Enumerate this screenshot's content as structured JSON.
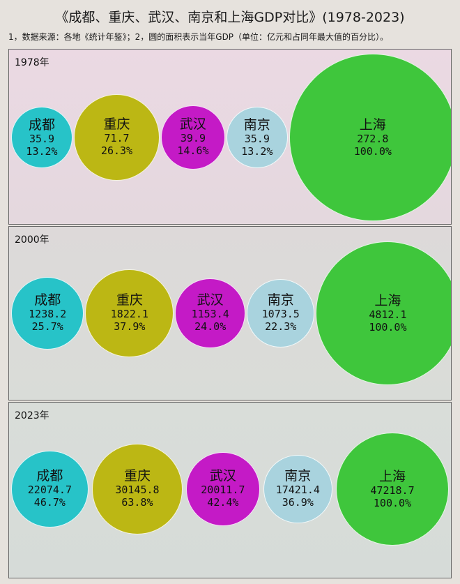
{
  "title": "《成都、重庆、武汉、南京和上海GDP对比》(1978-2023)",
  "note": "1，数据来源：各地《统计年鉴》；2，圆的面积表示当年GDP（单位：亿元和占同年最大值的百分比）。",
  "colors": {
    "成都": "#27c3c8",
    "重庆": "#bcb714",
    "武汉": "#c41ac6",
    "南京": "#a9d3de",
    "上海": "#3fc63c"
  },
  "chart_data": [
    {
      "type": "bubble",
      "panel_label": "1978年",
      "cities": [
        {
          "name": "成都",
          "value": "35.9",
          "percent": "13.2%"
        },
        {
          "name": "重庆",
          "value": "71.7",
          "percent": "26.3%"
        },
        {
          "name": "武汉",
          "value": "39.9",
          "percent": "14.6%"
        },
        {
          "name": "南京",
          "value": "35.9",
          "percent": "13.2%"
        },
        {
          "name": "上海",
          "value": "272.8",
          "percent": "100.0%"
        }
      ]
    },
    {
      "type": "bubble",
      "panel_label": "2000年",
      "cities": [
        {
          "name": "成都",
          "value": "1238.2",
          "percent": "25.7%"
        },
        {
          "name": "重庆",
          "value": "1822.1",
          "percent": "37.9%"
        },
        {
          "name": "武汉",
          "value": "1153.4",
          "percent": "24.0%"
        },
        {
          "name": "南京",
          "value": "1073.5",
          "percent": "22.3%"
        },
        {
          "name": "上海",
          "value": "4812.1",
          "percent": "100.0%"
        }
      ]
    },
    {
      "type": "bubble",
      "panel_label": "2023年",
      "cities": [
        {
          "name": "成都",
          "value": "22074.7",
          "percent": "46.7%"
        },
        {
          "name": "重庆",
          "value": "30145.8",
          "percent": "63.8%"
        },
        {
          "name": "武汉",
          "value": "20011.7",
          "percent": "42.4%"
        },
        {
          "name": "南京",
          "value": "17421.4",
          "percent": "36.9%"
        },
        {
          "name": "上海",
          "value": "47218.7",
          "percent": "100.0%"
        }
      ]
    }
  ]
}
